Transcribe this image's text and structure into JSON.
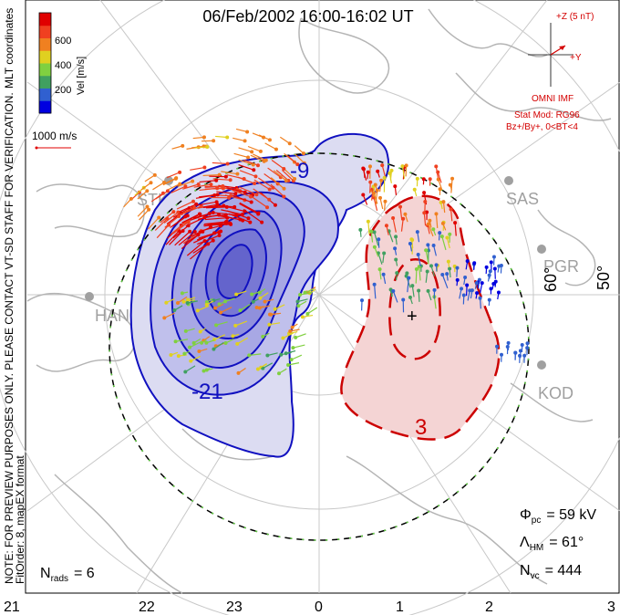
{
  "title": "06/Feb/2002 16:00-16:02 UT",
  "left_margin_text": {
    "line1": "MLT coordinates",
    "line2": "NOTE: FOR PREVIEW PURPOSES ONLY. PLEASE CONTACT VT-SD STAFF FOR VERIFICATION.",
    "line3": "FitOrder: 8, mapEX format"
  },
  "colorbar": {
    "label": "Vel [m/s]",
    "ticks": [
      "600",
      "400",
      "200"
    ],
    "colors": [
      "#0000e0",
      "#3060d0",
      "#40a060",
      "#80d040",
      "#e0d020",
      "#f08020",
      "#f04020",
      "#e00000"
    ]
  },
  "scale_vector": {
    "label": "1000 m/s",
    "color": "#e00000"
  },
  "imf_panel": {
    "plus_z": "+Z (5 nT)",
    "plus_y": "+Y",
    "source": "OMNI IMF",
    "stat_mod": "Stat Mod: RG96",
    "condition": "Bz+/By+, 0<BT<4",
    "color": "#d40000"
  },
  "stations": [
    "STK",
    "SAS",
    "PGR",
    "HAN",
    "KOD"
  ],
  "latitude_labels": [
    "60°",
    "50°"
  ],
  "contour_labels": {
    "neg_inner": "-9",
    "neg_outer": "-21",
    "pos": "3"
  },
  "pos_marker": "+",
  "stats": {
    "phi_pc_symbol": "Φ",
    "phi_pc_sub": "pc",
    "phi_pc_value": "= 59 kV",
    "lambda_symbol": "Λ",
    "lambda_sub": "HM",
    "lambda_value": "= 61°",
    "nvc_symbol": "N",
    "nvc_sub": "vc",
    "nvc_value": "= 444",
    "nrads_symbol": "N",
    "nrads_sub": "rads",
    "nrads_value": "= 6"
  },
  "mlt_labels": [
    "21",
    "22",
    "23",
    "0",
    "1",
    "2",
    "3"
  ],
  "colors": {
    "negative_fill": "#c8c8f0",
    "positive_fill": "#f4d4d4",
    "negative_line": "#1010c0",
    "positive_line": "#cc0000",
    "boundary_dash": "#60d040",
    "coast": "#b4b4b4",
    "grid": "#c8c8c8"
  }
}
